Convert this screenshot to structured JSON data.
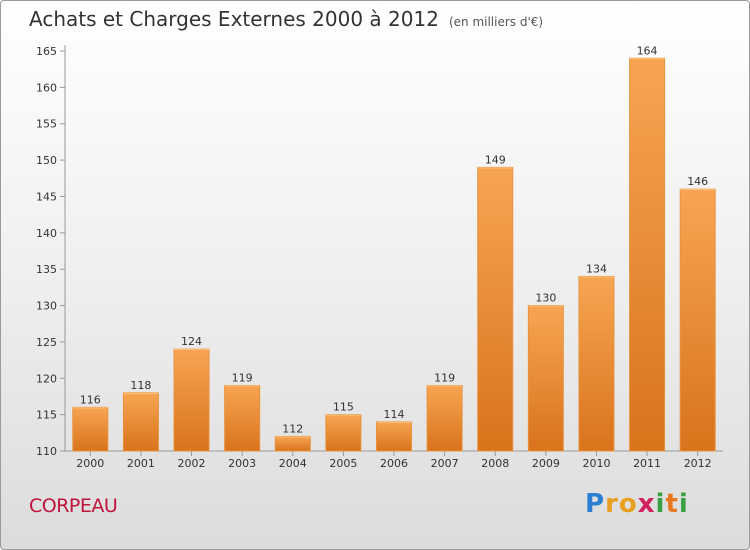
{
  "title": "Achats et Charges Externes 2000 à 2012",
  "subtitle": "(en milliers d'€)",
  "commune": "CORPEAU",
  "logo_text": "Proxiti",
  "colors": {
    "bar": "#f0923a",
    "bar_light": "#f7ab5c",
    "bar_dark": "#d8731a",
    "commune": "#c0143c"
  },
  "chart_data": {
    "type": "bar",
    "title": "Achats et Charges Externes 2000 à 2012",
    "subtitle": "(en milliers d'€)",
    "categories": [
      "2000",
      "2001",
      "2002",
      "2003",
      "2004",
      "2005",
      "2006",
      "2007",
      "2008",
      "2009",
      "2010",
      "2011",
      "2012"
    ],
    "values": [
      116,
      118,
      124,
      119,
      112,
      115,
      114,
      119,
      149,
      130,
      134,
      164,
      146
    ],
    "ylim": [
      110,
      165
    ],
    "yticks": [
      110,
      115,
      120,
      125,
      130,
      135,
      140,
      145,
      150,
      155,
      160,
      165
    ],
    "grid": false,
    "legend": "none"
  }
}
